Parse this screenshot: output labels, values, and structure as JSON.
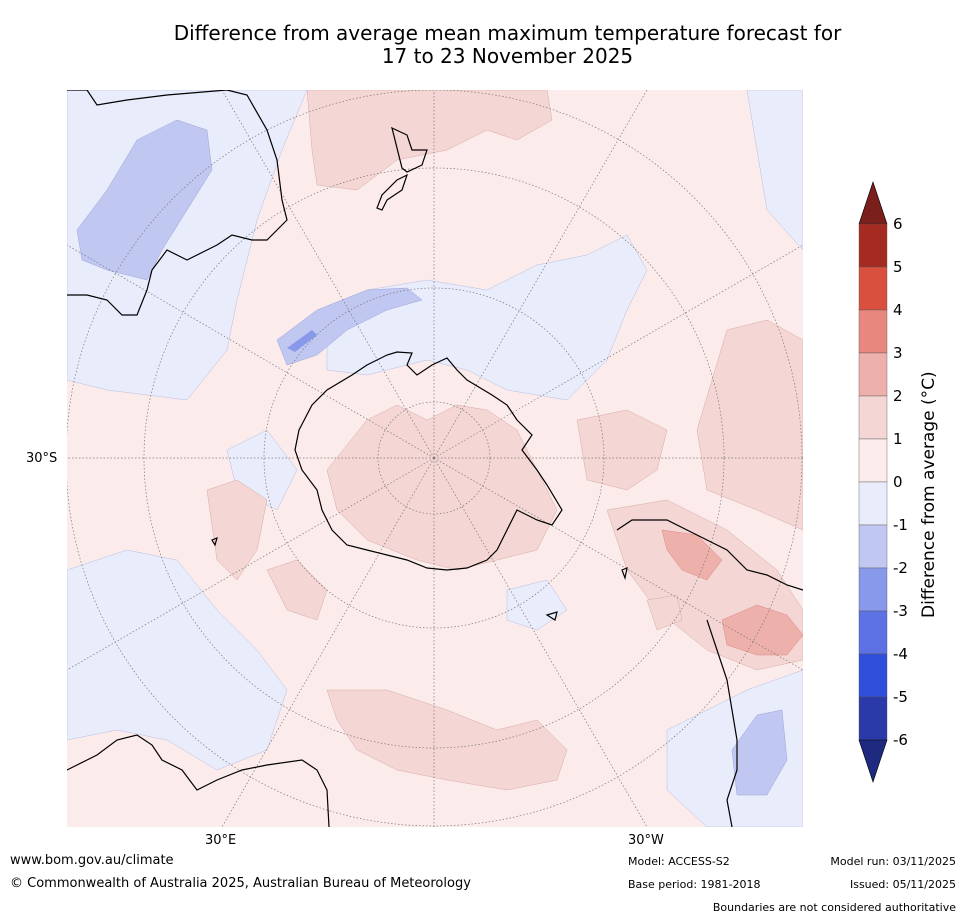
{
  "title": {
    "line1": "Difference from average mean maximum temperature forecast for",
    "line2": "17 to 23 November 2025"
  },
  "map": {
    "lat_labels": [
      "30°S"
    ],
    "lon_labels": [
      "30°E",
      "30°W"
    ]
  },
  "colorbar": {
    "label": "Difference from average ($^\\circ$C)",
    "label_text": "Difference from average (°C)",
    "ticks": [
      "6",
      "5",
      "4",
      "3",
      "2",
      "1",
      "0",
      "-1",
      "-2",
      "-3",
      "-4",
      "-5",
      "-6"
    ],
    "colors": [
      "#7a1f1b",
      "#a52b22",
      "#d9503f",
      "#e8877e",
      "#eeb0aa",
      "#f4d6d4",
      "#fbeceb",
      "#e9ecfb",
      "#c0c8f2",
      "#8898ea",
      "#5b71e4",
      "#2f4ed9",
      "#2a3aa8",
      "#1e2a80"
    ]
  },
  "footer": {
    "website": "www.bom.gov.au/climate",
    "copyright": "© Commonwealth of Australia 2025, Australian Bureau of Meteorology",
    "model": "Model: ACCESS-S2",
    "base_period": "Base period: 1981-2018",
    "model_run": "Model run: 03/11/2025",
    "issued": "Issued: 05/11/2025",
    "disclaimer": "Boundaries are not considered authoritative"
  }
}
